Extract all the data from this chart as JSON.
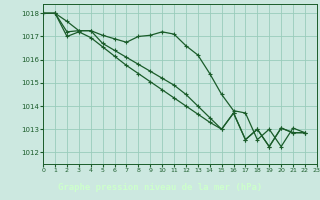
{
  "title": "Graphe pression niveau de la mer (hPa)",
  "background_color": "#cce8e0",
  "plot_bg": "#cce8e0",
  "grid_color": "#99ccbb",
  "line_color": "#1a5c2a",
  "label_bg": "#2d6e3a",
  "label_fg": "#ccffcc",
  "x_min": 0,
  "x_max": 23,
  "y_min": 1011.5,
  "y_max": 1018.4,
  "y_ticks": [
    1012,
    1013,
    1014,
    1015,
    1016,
    1017,
    1018
  ],
  "x_ticks": [
    0,
    1,
    2,
    3,
    4,
    5,
    6,
    7,
    8,
    9,
    10,
    11,
    12,
    13,
    14,
    15,
    16,
    17,
    18,
    19,
    20,
    21,
    22,
    23
  ],
  "series1": [
    [
      0,
      1018.0
    ],
    [
      1,
      1018.0
    ],
    [
      2,
      1017.65
    ],
    [
      3,
      1017.25
    ],
    [
      4,
      1017.25
    ],
    [
      5,
      1017.05
    ],
    [
      6,
      1016.9
    ],
    [
      7,
      1016.75
    ],
    [
      8,
      1017.0
    ],
    [
      9,
      1017.05
    ],
    [
      10,
      1017.2
    ],
    [
      11,
      1017.1
    ],
    [
      12,
      1016.6
    ],
    [
      13,
      1016.2
    ],
    [
      14,
      1015.4
    ],
    [
      15,
      1014.5
    ],
    [
      16,
      1013.8
    ],
    [
      17,
      1013.7
    ],
    [
      18,
      1012.55
    ],
    [
      19,
      1013.0
    ],
    [
      20,
      1012.25
    ],
    [
      21,
      1013.05
    ],
    [
      22,
      1012.85
    ]
  ],
  "series2": [
    [
      0,
      1018.0
    ],
    [
      1,
      1018.0
    ],
    [
      2,
      1017.2
    ],
    [
      3,
      1017.25
    ],
    [
      4,
      1017.25
    ],
    [
      5,
      1016.7
    ],
    [
      6,
      1016.4
    ],
    [
      7,
      1016.1
    ],
    [
      8,
      1015.8
    ],
    [
      9,
      1015.5
    ],
    [
      10,
      1015.2
    ],
    [
      11,
      1014.9
    ],
    [
      12,
      1014.5
    ],
    [
      13,
      1014.0
    ],
    [
      14,
      1013.5
    ],
    [
      15,
      1013.0
    ],
    [
      16,
      1013.7
    ],
    [
      17,
      1012.55
    ],
    [
      18,
      1013.0
    ],
    [
      19,
      1012.25
    ],
    [
      20,
      1013.05
    ],
    [
      21,
      1012.85
    ],
    [
      22,
      1012.85
    ]
  ],
  "series3": [
    [
      0,
      1018.0
    ],
    [
      1,
      1018.0
    ],
    [
      2,
      1017.0
    ],
    [
      3,
      1017.2
    ],
    [
      4,
      1016.95
    ],
    [
      5,
      1016.55
    ],
    [
      6,
      1016.15
    ],
    [
      7,
      1015.75
    ],
    [
      8,
      1015.4
    ],
    [
      9,
      1015.05
    ],
    [
      10,
      1014.7
    ],
    [
      11,
      1014.35
    ],
    [
      12,
      1014.0
    ],
    [
      13,
      1013.65
    ],
    [
      14,
      1013.3
    ],
    [
      15,
      1013.0
    ],
    [
      16,
      1013.7
    ],
    [
      17,
      1012.55
    ],
    [
      18,
      1013.0
    ],
    [
      19,
      1012.25
    ],
    [
      20,
      1013.05
    ],
    [
      21,
      1012.85
    ],
    [
      22,
      1012.85
    ]
  ]
}
